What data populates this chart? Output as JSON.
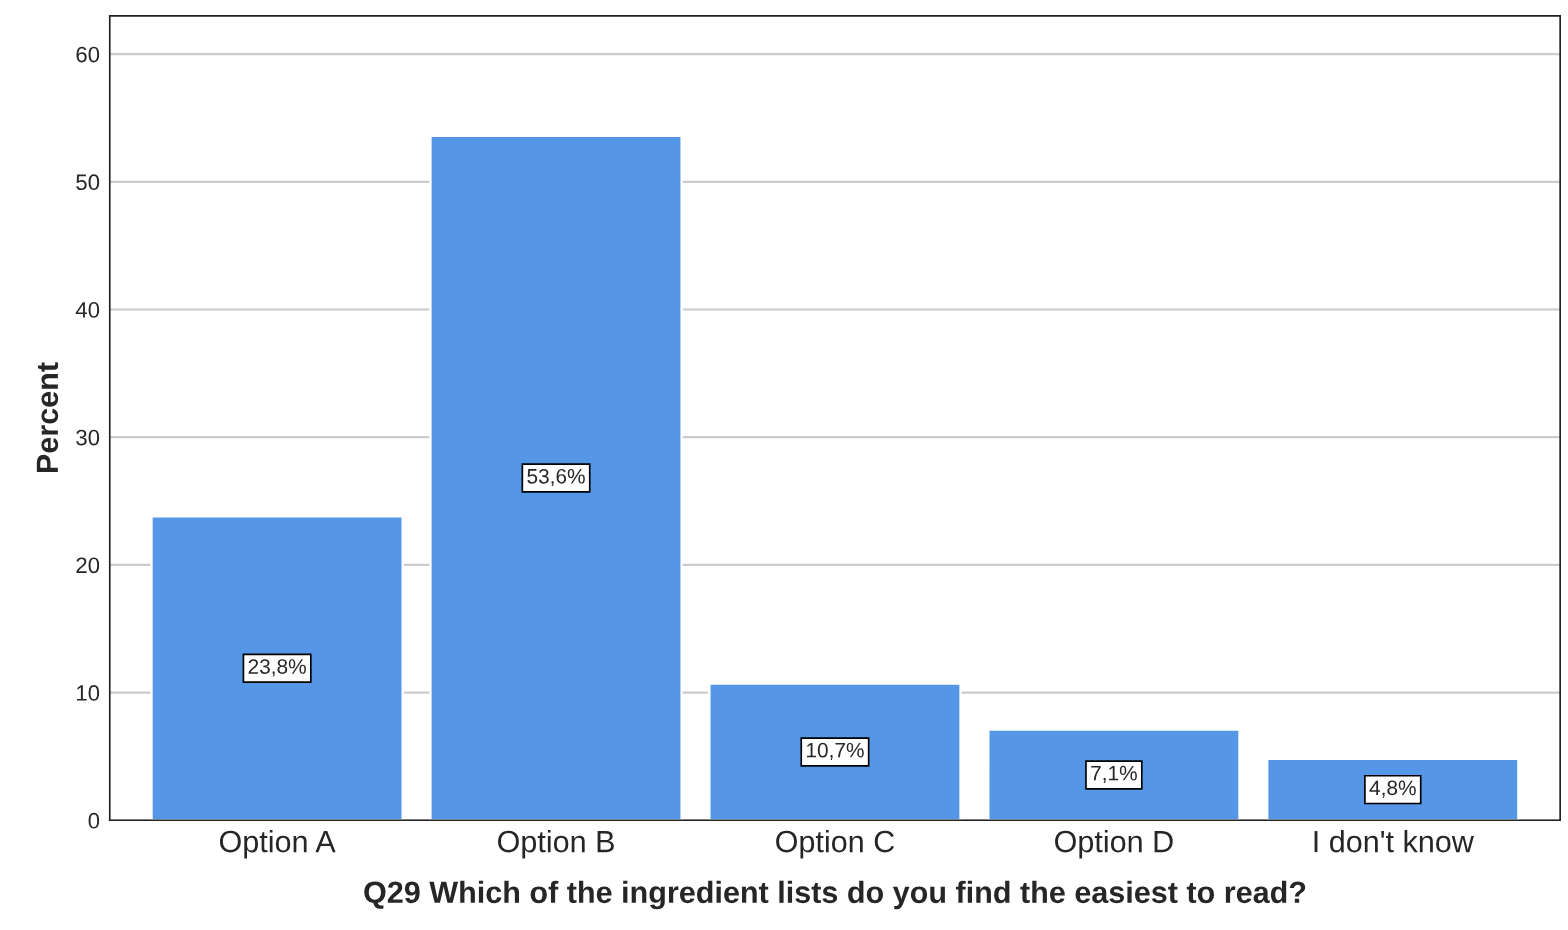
{
  "chart_data": {
    "type": "bar",
    "xlabel": "Q29 Which of the ingredient lists do you find the easiest to read?",
    "ylabel": "Percent",
    "categories": [
      "Option A",
      "Option B",
      "Option C",
      "Option D",
      "I don't know"
    ],
    "values": [
      23.8,
      53.6,
      10.7,
      7.1,
      4.8
    ],
    "value_labels": [
      "23,8%",
      "53,6%",
      "10,7%",
      "7,1%",
      "4,8%"
    ],
    "color": "#5596e6",
    "ylim": [
      0,
      63
    ],
    "yticks": [
      0,
      10,
      20,
      30,
      40,
      50,
      60
    ],
    "grid": "y",
    "legend": false
  }
}
